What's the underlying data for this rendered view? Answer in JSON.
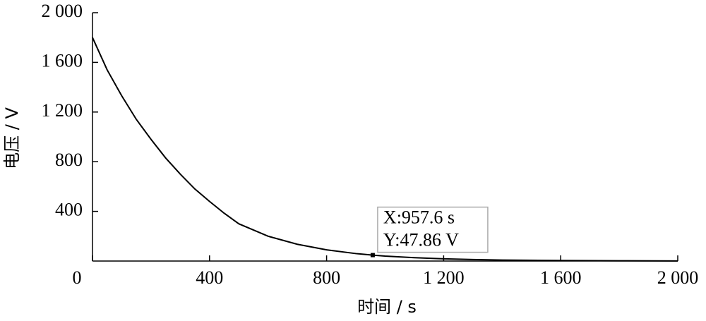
{
  "chart_data": {
    "type": "line",
    "x_label": "时间 / s",
    "y_label": "电压 / V",
    "x": [
      0,
      50,
      100,
      150,
      200,
      250,
      300,
      350,
      400,
      450,
      500,
      600,
      700,
      800,
      900,
      957.6,
      1000,
      1100,
      1200,
      1300,
      1400,
      1600,
      1800,
      2000
    ],
    "values": [
      1800,
      1540,
      1330,
      1140,
      980,
      830,
      700,
      580,
      480,
      385,
      300,
      200,
      135,
      90,
      60,
      47.86,
      40,
      27,
      18,
      12,
      8,
      4,
      2,
      1
    ],
    "color": "#000000",
    "xlim": [
      0,
      2000
    ],
    "ylim": [
      0,
      2000
    ],
    "xticks": [
      0,
      400,
      800,
      {
        "value": 1200,
        "label": "1 200"
      },
      {
        "value": 1600,
        "label": "1 600"
      },
      {
        "value": 2000,
        "label": "2 000"
      }
    ],
    "yticks": [
      400,
      800,
      {
        "value": 1200,
        "label": "1 200"
      },
      {
        "value": 1600,
        "label": "1 600"
      },
      {
        "value": 2000,
        "label": "2 000"
      }
    ],
    "annotation": {
      "point_index": 15,
      "lines": [
        "X:957.6 s",
        "Y:47.86 V"
      ]
    }
  }
}
